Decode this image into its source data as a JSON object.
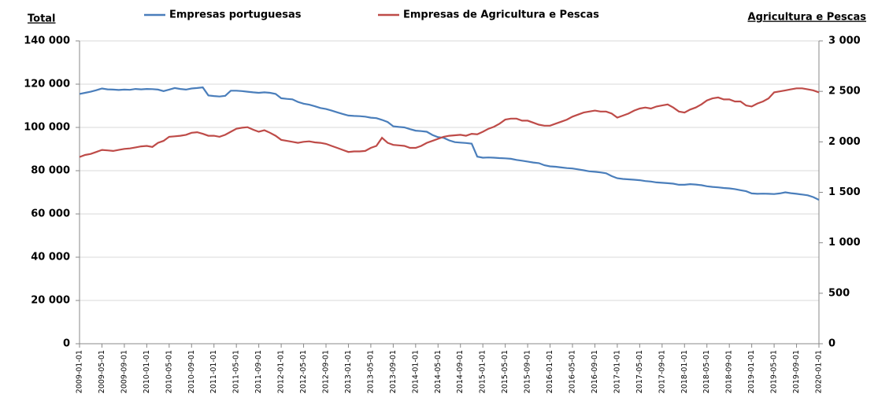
{
  "chart_data": {
    "type": "line",
    "ylabel": "Total",
    "y2label": "Agricultura e Pescas",
    "categories": [
      "2009-01-01",
      null,
      null,
      null,
      "2009-05-01",
      null,
      null,
      null,
      "2009-09-01",
      null,
      null,
      null,
      "2010-01-01",
      null,
      null,
      null,
      "2010-05-01",
      null,
      null,
      null,
      "2010-09-01",
      null,
      null,
      null,
      "2011-01-01",
      null,
      null,
      null,
      "2011-05-01",
      null,
      null,
      null,
      "2011-09-01",
      null,
      null,
      null,
      "2012-01-01",
      null,
      null,
      null,
      "2012-05-01",
      null,
      null,
      null,
      "2012-09-01",
      null,
      null,
      null,
      "2013-01-01",
      null,
      null,
      null,
      "2013-05-01",
      null,
      null,
      null,
      "2013-09-01",
      null,
      null,
      null,
      "2014-01-01",
      null,
      null,
      null,
      "2014-05-01",
      null,
      null,
      null,
      "2014-09-01",
      null,
      null,
      null,
      "2015-01-01",
      null,
      null,
      null,
      "2015-05-01",
      null,
      null,
      null,
      "2015-09-01",
      null,
      null,
      null,
      "2016-01-01",
      null,
      null,
      null,
      "2016-05-01",
      null,
      null,
      null,
      "2016-09-01",
      null,
      null,
      null,
      "2017-01-01",
      null,
      null,
      null,
      "2017-05-01",
      null,
      null,
      null,
      "2017-09-01",
      null,
      null,
      null,
      "2018-01-01",
      null,
      null,
      null,
      "2018-05-01",
      null,
      null,
      null,
      "2018-09-01",
      null,
      null,
      null,
      "2019-01-01",
      null,
      null,
      null,
      "2019-05-01",
      null,
      null,
      null,
      "2019-09-01",
      null,
      null,
      null,
      "2020-01-01"
    ],
    "series": [
      {
        "name": "Empresas portuguesas",
        "color": "#4a7ebb",
        "axis": "y",
        "values": [
          115500,
          116000,
          116500,
          117200,
          118000,
          117600,
          117500,
          117300,
          117500,
          117400,
          117800,
          117600,
          117800,
          117700,
          117500,
          116800,
          117500,
          118200,
          117800,
          117500,
          118000,
          118200,
          118500,
          114800,
          114500,
          114300,
          114600,
          117000,
          117000,
          116800,
          116500,
          116200,
          116000,
          116200,
          116000,
          115500,
          113500,
          113200,
          113000,
          111800,
          111000,
          110500,
          109800,
          109000,
          108500,
          107800,
          107000,
          106200,
          105500,
          105300,
          105200,
          105000,
          104500,
          104300,
          103500,
          102500,
          100500,
          100200,
          100000,
          99200,
          98500,
          98300,
          98000,
          96500,
          95500,
          95200,
          94000,
          93200,
          93000,
          92800,
          92500,
          86500,
          86000,
          86100,
          86000,
          85800,
          85700,
          85500,
          85000,
          84600,
          84200,
          83800,
          83500,
          82500,
          82000,
          81800,
          81500,
          81200,
          81000,
          80600,
          80200,
          79700,
          79500,
          79200,
          78800,
          77500,
          76500,
          76200,
          76000,
          75800,
          75600,
          75200,
          75000,
          74600,
          74400,
          74200,
          74000,
          73500,
          73500,
          73800,
          73600,
          73300,
          72800,
          72500,
          72300,
          72000,
          71800,
          71500,
          71000,
          70500,
          69500,
          69300,
          69400,
          69300,
          69200,
          69500,
          70000,
          69600,
          69300,
          69000,
          68600,
          67800,
          66500
        ]
      },
      {
        "name": "Empresas de Agricultura e Pescas",
        "color": "#be4b48",
        "axis": "y2",
        "values": [
          1850,
          1870,
          1880,
          1900,
          1920,
          1915,
          1910,
          1920,
          1930,
          1935,
          1945,
          1955,
          1960,
          1950,
          1990,
          2010,
          2050,
          2055,
          2060,
          2070,
          2090,
          2095,
          2080,
          2060,
          2060,
          2050,
          2070,
          2100,
          2130,
          2140,
          2145,
          2120,
          2100,
          2115,
          2090,
          2060,
          2020,
          2010,
          2000,
          1990,
          2000,
          2005,
          1995,
          1990,
          1980,
          1960,
          1940,
          1920,
          1900,
          1905,
          1905,
          1910,
          1940,
          1960,
          2040,
          1990,
          1970,
          1965,
          1960,
          1940,
          1940,
          1960,
          1990,
          2010,
          2030,
          2050,
          2060,
          2065,
          2070,
          2060,
          2080,
          2075,
          2100,
          2130,
          2150,
          2180,
          2220,
          2230,
          2230,
          2210,
          2210,
          2190,
          2170,
          2160,
          2160,
          2180,
          2200,
          2220,
          2250,
          2270,
          2290,
          2300,
          2310,
          2300,
          2300,
          2280,
          2240,
          2260,
          2280,
          2310,
          2330,
          2340,
          2330,
          2350,
          2360,
          2370,
          2340,
          2300,
          2290,
          2320,
          2340,
          2370,
          2410,
          2430,
          2440,
          2420,
          2420,
          2400,
          2400,
          2360,
          2350,
          2380,
          2400,
          2430,
          2490,
          2500,
          2510,
          2520,
          2530,
          2530,
          2520,
          2510,
          2490
        ]
      }
    ],
    "ylim": [
      0,
      140000
    ],
    "yticks": [
      0,
      {
        "value": 20000,
        "label": "20 000"
      },
      {
        "value": 40000,
        "label": "40 000"
      },
      {
        "value": 60000,
        "label": "60 000"
      },
      {
        "value": 80000,
        "label": "80 000"
      },
      {
        "value": 100000,
        "label": "100 000"
      },
      {
        "value": 120000,
        "label": "120 000"
      },
      {
        "value": 140000,
        "label": "140 000"
      }
    ],
    "y2lim": [
      0,
      3000
    ],
    "y2ticks": [
      0,
      500,
      {
        "value": 1000,
        "label": "1 000"
      },
      {
        "value": 1500,
        "label": "1 500"
      },
      {
        "value": 2000,
        "label": "2 000"
      },
      {
        "value": 2500,
        "label": "2 500"
      },
      {
        "value": 3000,
        "label": "3 000"
      }
    ],
    "grid": true,
    "legend": "top"
  }
}
